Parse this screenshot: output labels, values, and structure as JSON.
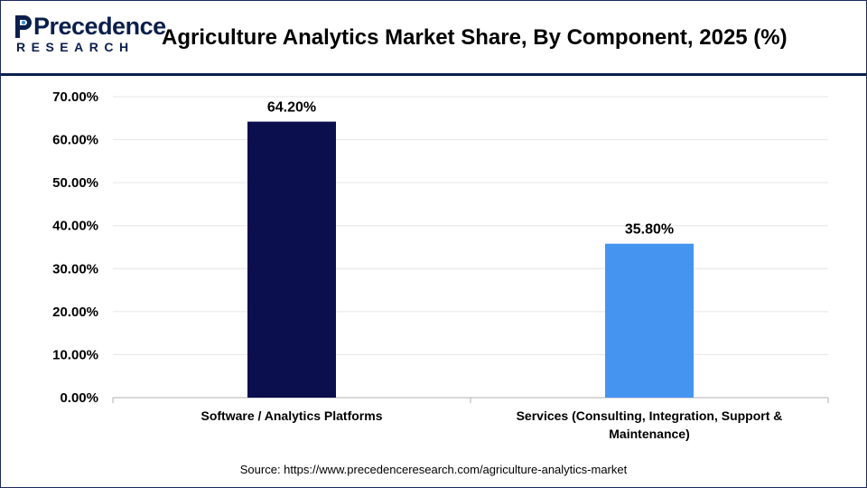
{
  "header": {
    "logo": {
      "line1": "Precedence",
      "line2": "RESEARCH"
    },
    "title": "Agriculture Analytics Market Share, By Component, 2025 (%)"
  },
  "colors": {
    "navy": "#0b0f4d",
    "blue": "#4494f0",
    "brand": "#0b1f4d",
    "logo_accent": "#3a8fe0"
  },
  "chart_data": {
    "type": "bar",
    "title": "Agriculture Analytics Market Share, By Component, 2025 (%)",
    "categories": [
      [
        "Software / Analytics Platforms"
      ],
      [
        "Services (Consulting, Integration, Support &",
        "Maintenance)"
      ]
    ],
    "values": [
      64.2,
      35.8
    ],
    "data_labels": [
      "64.20%",
      "35.80%"
    ],
    "bar_colors": [
      "#0b0f4d",
      "#4494f0"
    ],
    "ylim": [
      0,
      70
    ],
    "yticks": [
      0,
      10,
      20,
      30,
      40,
      50,
      60,
      70
    ],
    "ytick_labels": [
      "0.00%",
      "10.00%",
      "20.00%",
      "30.00%",
      "40.00%",
      "50.00%",
      "60.00%",
      "70.00%"
    ],
    "grid": true,
    "legend": "none",
    "xlabel": "",
    "ylabel": ""
  },
  "source": "Source: https://www.precedenceresearch.com/agriculture-analytics-market"
}
